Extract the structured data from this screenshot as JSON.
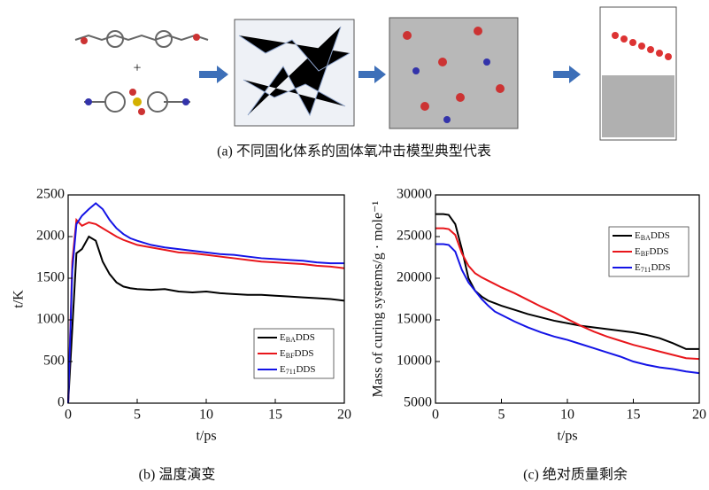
{
  "panel_a": {
    "plus": "+",
    "caption": "(a)  不同固化体系的固体氧冲击模型典型代表"
  },
  "chart_data": [
    {
      "type": "line",
      "caption": "(b)  温度演变",
      "x_label": "t/ps",
      "y_label": "t/K",
      "xlim": [
        0,
        20
      ],
      "xticks": [
        0,
        5,
        10,
        15,
        20
      ],
      "ylim": [
        0,
        2500
      ],
      "yticks": [
        0,
        500,
        1000,
        1500,
        2000,
        2500
      ],
      "legend": "lower right",
      "x": [
        0,
        0.3,
        0.6,
        1,
        1.5,
        2,
        2.5,
        3,
        3.5,
        4,
        4.5,
        5,
        6,
        7,
        8,
        9,
        10,
        11,
        12,
        13,
        14,
        15,
        16,
        17,
        18,
        19,
        20
      ],
      "series": [
        {
          "name": [
            "E",
            "BA",
            "DDS"
          ],
          "color": "#000000",
          "values": [
            0,
            900,
            1800,
            1850,
            2000,
            1950,
            1700,
            1550,
            1450,
            1400,
            1380,
            1370,
            1360,
            1370,
            1340,
            1330,
            1340,
            1320,
            1310,
            1300,
            1300,
            1290,
            1280,
            1270,
            1260,
            1250,
            1230
          ]
        },
        {
          "name": [
            "E",
            "BF",
            "DDS"
          ],
          "color": "#e8161b",
          "values": [
            0,
            1700,
            2200,
            2130,
            2170,
            2150,
            2100,
            2050,
            2000,
            1960,
            1930,
            1900,
            1870,
            1840,
            1810,
            1800,
            1780,
            1760,
            1740,
            1720,
            1700,
            1690,
            1680,
            1670,
            1650,
            1640,
            1620
          ]
        },
        {
          "name": [
            "E",
            "711",
            "DDS"
          ],
          "color": "#1414e6",
          "values": [
            0,
            1600,
            2150,
            2250,
            2330,
            2400,
            2330,
            2200,
            2100,
            2030,
            1980,
            1950,
            1900,
            1870,
            1850,
            1830,
            1810,
            1790,
            1780,
            1760,
            1740,
            1730,
            1720,
            1710,
            1690,
            1680,
            1680
          ]
        }
      ]
    },
    {
      "type": "line",
      "caption": "(c)  绝对质量剩余",
      "x_label": "t/ps",
      "y_label": "Mass of curing systems/g · mole⁻¹",
      "xlim": [
        0,
        20
      ],
      "xticks": [
        0,
        5,
        10,
        15,
        20
      ],
      "ylim": [
        5000,
        30000
      ],
      "yticks": [
        5000,
        10000,
        15000,
        20000,
        25000,
        30000
      ],
      "legend": "upper right",
      "x": [
        0,
        0.3,
        0.6,
        1,
        1.5,
        2,
        2.5,
        3,
        3.5,
        4,
        4.5,
        5,
        6,
        7,
        8,
        9,
        10,
        11,
        12,
        13,
        14,
        15,
        16,
        17,
        18,
        19,
        20
      ],
      "series": [
        {
          "name": [
            "E",
            "BA",
            "DDS"
          ],
          "color": "#000000",
          "values": [
            27700,
            27700,
            27700,
            27600,
            26500,
            23500,
            20000,
            18500,
            17800,
            17300,
            17000,
            16700,
            16200,
            15700,
            15300,
            14900,
            14600,
            14300,
            14100,
            13900,
            13700,
            13500,
            13200,
            12800,
            12200,
            11500,
            11500
          ]
        },
        {
          "name": [
            "E",
            "BF",
            "DDS"
          ],
          "color": "#e8161b",
          "values": [
            26000,
            26000,
            26000,
            25900,
            25200,
            23000,
            21500,
            20600,
            20100,
            19700,
            19300,
            18900,
            18200,
            17400,
            16600,
            15900,
            15100,
            14300,
            13600,
            13000,
            12500,
            12000,
            11600,
            11200,
            10800,
            10400,
            10300
          ]
        },
        {
          "name": [
            "E",
            "711",
            "DDS"
          ],
          "color": "#1414e6",
          "values": [
            24100,
            24100,
            24100,
            24000,
            23200,
            21000,
            19500,
            18500,
            17500,
            16700,
            16000,
            15600,
            14800,
            14100,
            13500,
            13000,
            12600,
            12100,
            11600,
            11100,
            10600,
            10000,
            9600,
            9300,
            9100,
            8800,
            8600
          ]
        }
      ]
    }
  ]
}
